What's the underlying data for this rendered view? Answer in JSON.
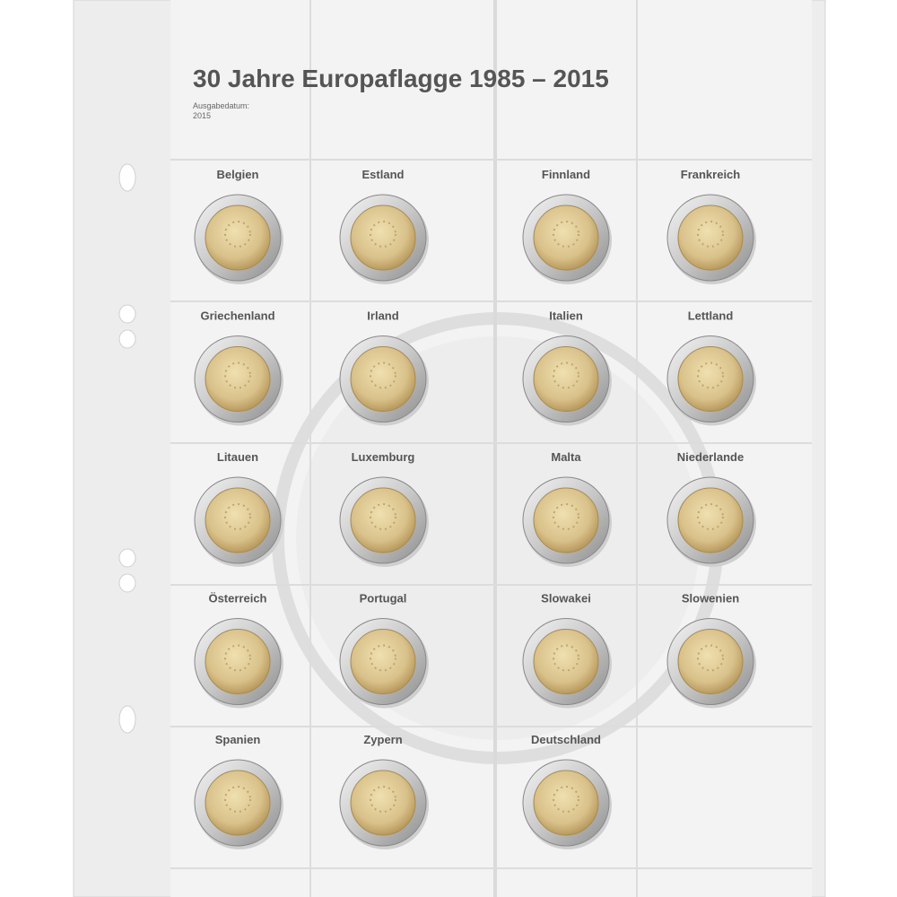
{
  "header": {
    "title": "30 Jahre Europaflagge 1985 – 2015",
    "subtitle_label": "Ausgabedatum:",
    "subtitle_value": "2015"
  },
  "coins": [
    "Belgien",
    "Estland",
    "Finnland",
    "Frankreich",
    "Griechenland",
    "Irland",
    "Italien",
    "Lettland",
    "Litauen",
    "Luxemburg",
    "Malta",
    "Niederlande",
    "Österreich",
    "Portugal",
    "Slowakei",
    "Slowenien",
    "Spanien",
    "Zypern",
    "Deutschland"
  ]
}
